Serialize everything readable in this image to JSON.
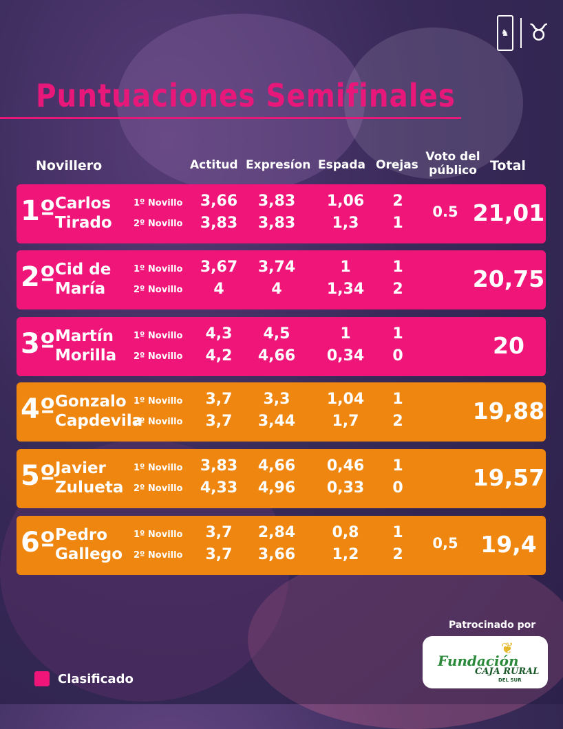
{
  "title": "Puntuaciones Semifinales",
  "headers": {
    "novillero": "Novillero",
    "actitud": "Actitud",
    "expresion": "Expresíon",
    "espada": "Espada",
    "orejas": "Orejas",
    "voto": "Voto del público",
    "total": "Total"
  },
  "novillo_labels": [
    "1º Novillo",
    "2º Novillo"
  ],
  "rows": [
    {
      "pos": "1º",
      "name1": "Carlos",
      "name2": "Tirado",
      "status": "pink",
      "n1": {
        "actitud": "3,66",
        "expresion": "3,83",
        "espada": "1,06",
        "orejas": "2"
      },
      "n2": {
        "actitud": "3,83",
        "expresion": "3,83",
        "espada": "1,3",
        "orejas": "1"
      },
      "voto": "0.5",
      "total": "21,01"
    },
    {
      "pos": "2º",
      "name1": "Cid de",
      "name2": "María",
      "status": "pink",
      "n1": {
        "actitud": "3,67",
        "expresion": "3,74",
        "espada": "1",
        "orejas": "1"
      },
      "n2": {
        "actitud": "4",
        "expresion": "4",
        "espada": "1,34",
        "orejas": "2"
      },
      "voto": "",
      "total": "20,75"
    },
    {
      "pos": "3º",
      "name1": "Martín",
      "name2": "Morilla",
      "status": "pink",
      "n1": {
        "actitud": "4,3",
        "expresion": "4,5",
        "espada": "1",
        "orejas": "1"
      },
      "n2": {
        "actitud": "4,2",
        "expresion": "4,66",
        "espada": "0,34",
        "orejas": "0"
      },
      "voto": "",
      "total": "20"
    },
    {
      "pos": "4º",
      "name1": "Gonzalo",
      "name2": "Capdevila",
      "status": "orange",
      "n1": {
        "actitud": "3,7",
        "expresion": "3,3",
        "espada": "1,04",
        "orejas": "1"
      },
      "n2": {
        "actitud": "3,7",
        "expresion": "3,44",
        "espada": "1,7",
        "orejas": "2"
      },
      "voto": "",
      "total": "19,88"
    },
    {
      "pos": "5º",
      "name1": "Javier",
      "name2": "Zulueta",
      "status": "orange",
      "n1": {
        "actitud": "3,83",
        "expresion": "4,66",
        "espada": "0,46",
        "orejas": "1"
      },
      "n2": {
        "actitud": "4,33",
        "expresion": "4,96",
        "espada": "0,33",
        "orejas": "0"
      },
      "voto": "",
      "total": "19,57"
    },
    {
      "pos": "6º",
      "name1": "Pedro",
      "name2": "Gallego",
      "status": "orange",
      "n1": {
        "actitud": "3,7",
        "expresion": "2,84",
        "espada": "0,8",
        "orejas": "1"
      },
      "n2": {
        "actitud": "3,7",
        "expresion": "3,66",
        "espada": "1,2",
        "orejas": "2"
      },
      "voto": "0,5",
      "total": "19,4"
    }
  ],
  "legend": {
    "label": "Clasificado",
    "color": "#f01679"
  },
  "sponsor": {
    "label": "Patrocinado por",
    "fundacion": "Fundación",
    "caja": "CAJA RURAL",
    "sur": "DEL SUR"
  },
  "colors": {
    "pink": "#f01679",
    "orange": "#ef860f",
    "title": "#e8177a"
  },
  "icons": [
    "plaza-logo-icon",
    "bull-logo-icon",
    "wheat-icon"
  ]
}
